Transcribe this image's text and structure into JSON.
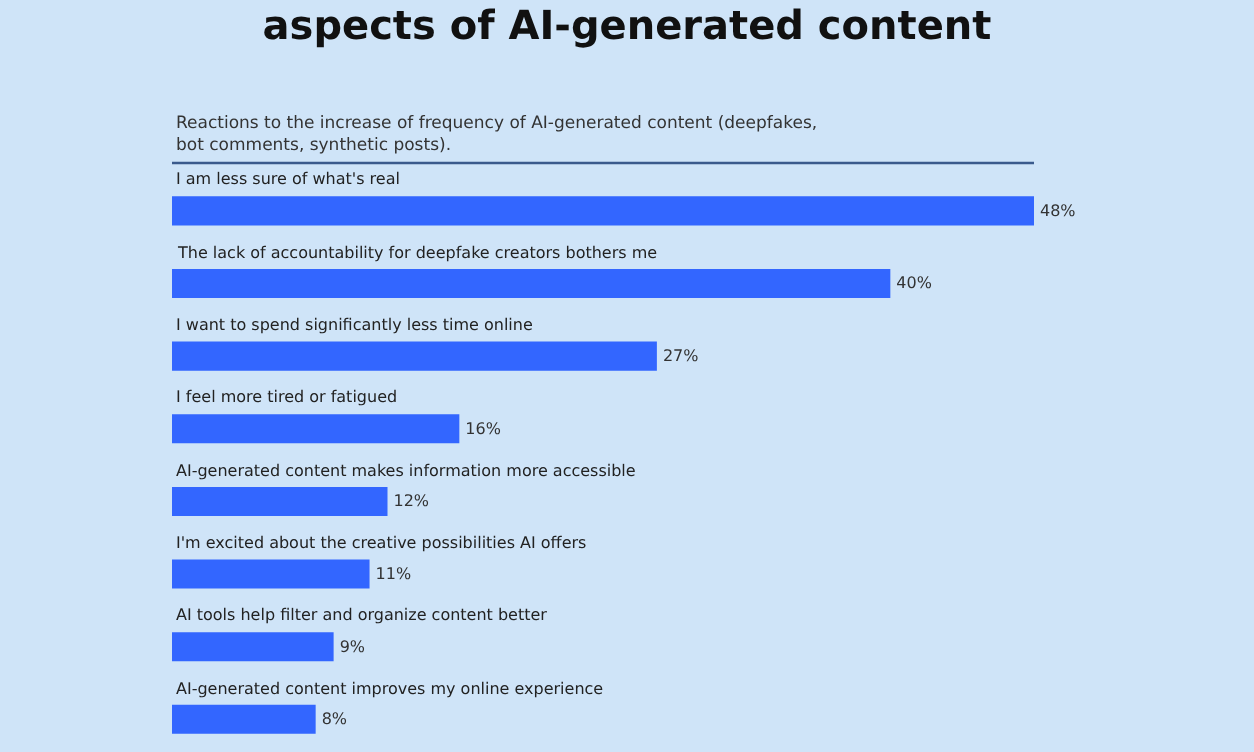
{
  "chart_data": {
    "type": "bar",
    "orientation": "horizontal",
    "xlim": [
      0,
      48
    ],
    "title": "aspects of AI-generated content",
    "subtitle": "Reactions to the increase of frequency of AI-generated content (deepfakes, bot comments, synthetic posts).",
    "categories": [
      "I am less sure of what's real",
      "The lack of accountability for deepfake creators bothers me",
      "I want to spend significantly less time online",
      "I feel more tired or fatigued",
      "AI-generated content makes information more accessible",
      "I'm excited about the creative possibilities AI offers",
      "AI tools help filter and organize content better",
      "AI-generated content improves my online experience"
    ],
    "values": [
      48,
      40,
      27,
      16,
      12,
      11,
      9,
      8
    ],
    "value_labels": [
      "48%",
      "40%",
      "27%",
      "16%",
      "12%",
      "11%",
      "9%",
      "8%"
    ],
    "color": "#3366ff"
  }
}
